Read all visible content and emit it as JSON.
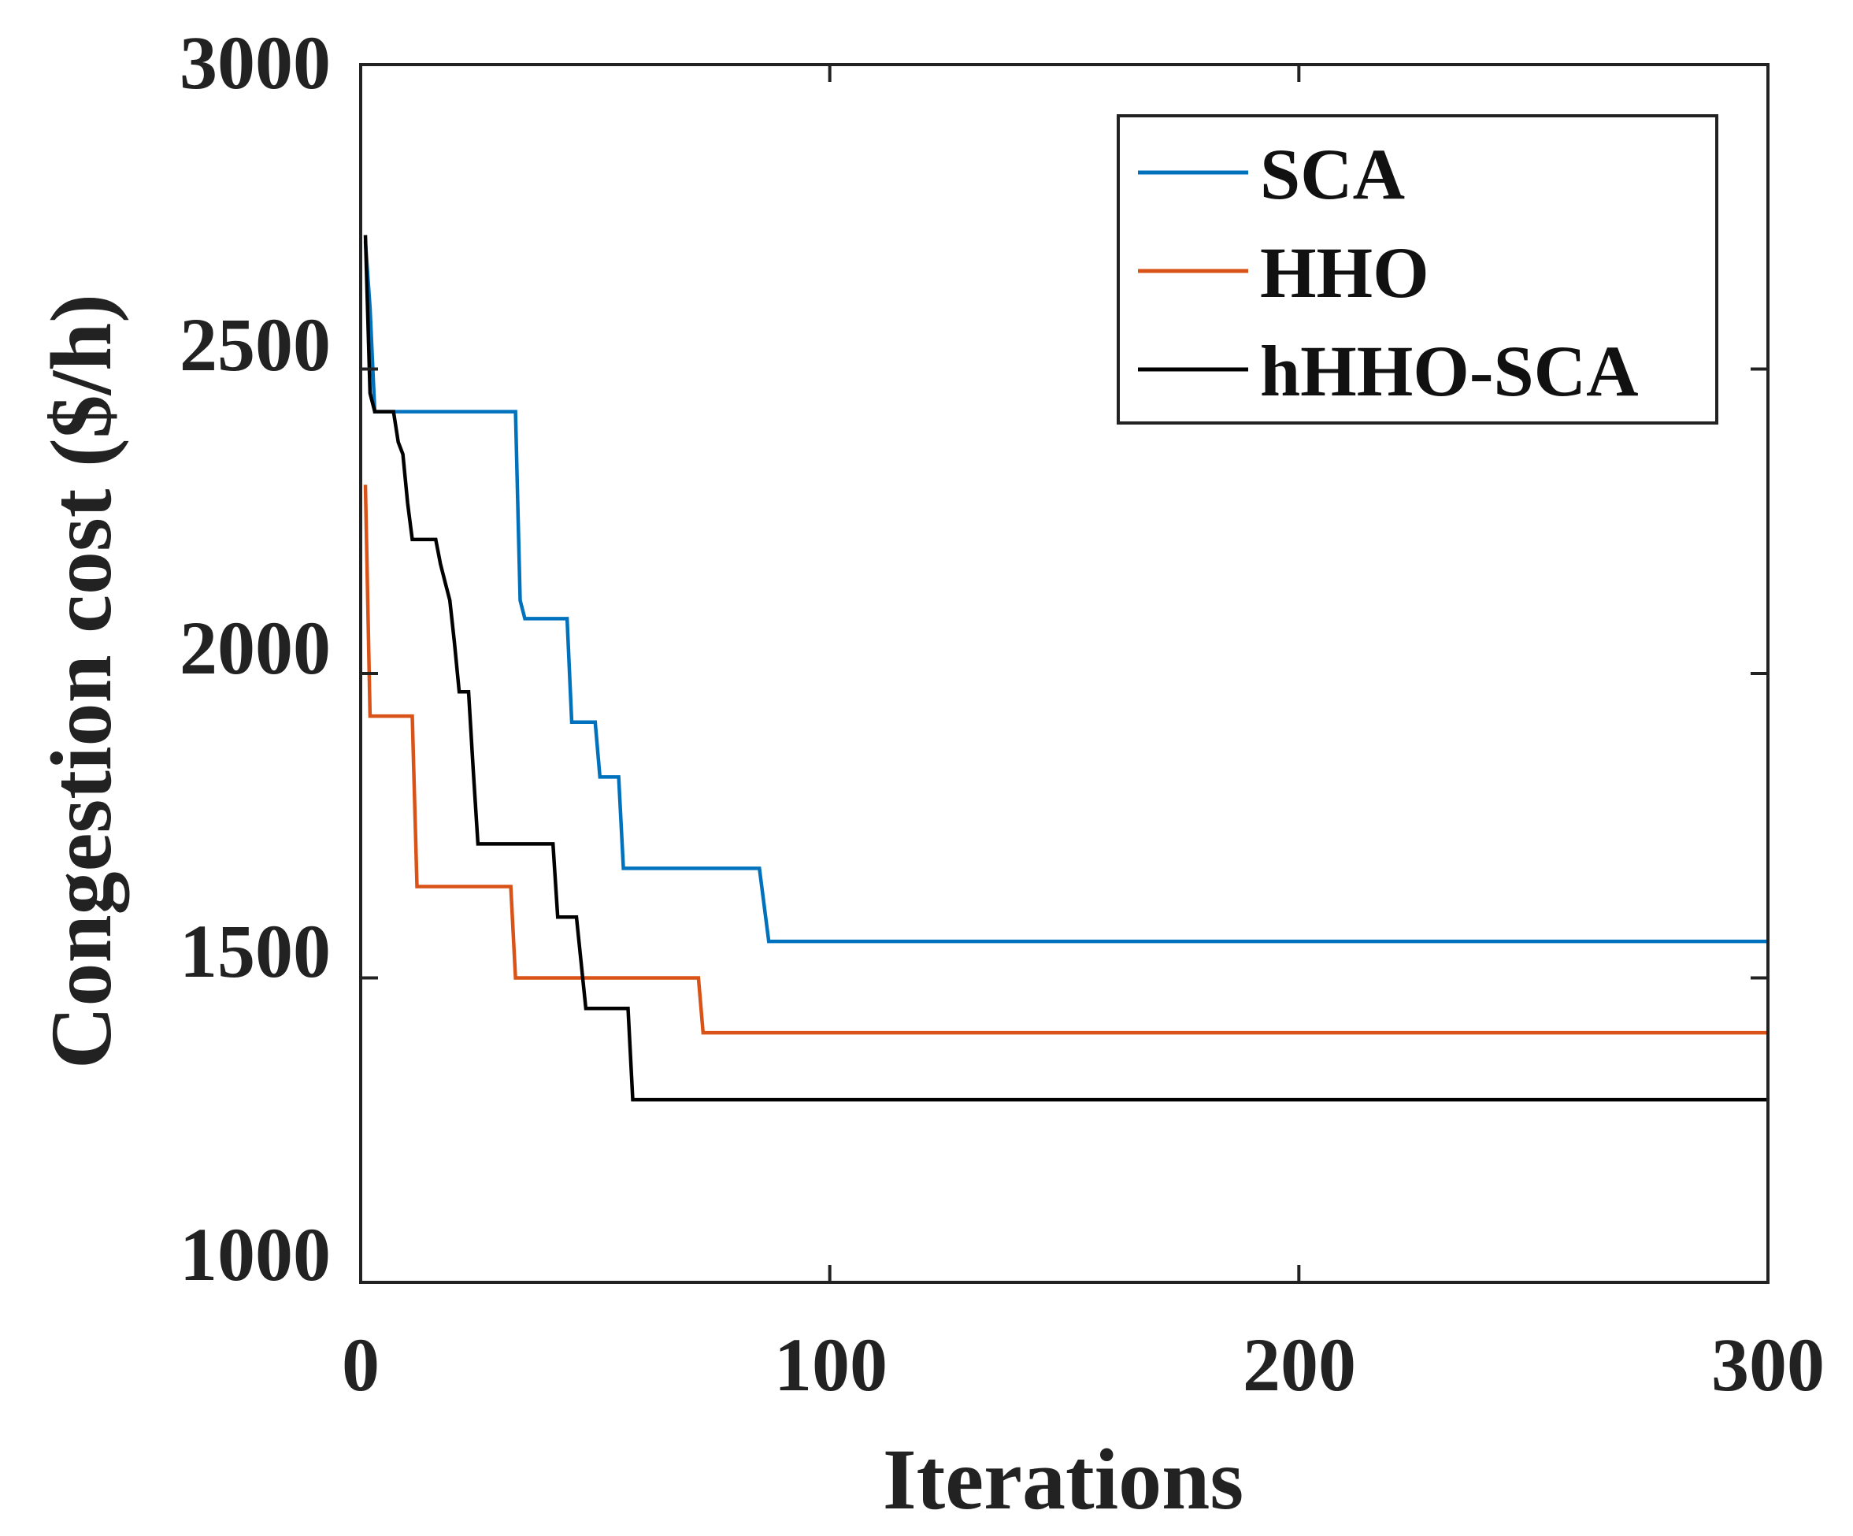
{
  "chart_data": {
    "type": "line",
    "title": "",
    "xlabel": "Iterations",
    "ylabel": "Congestion cost ($/h)",
    "xlim": [
      0,
      300
    ],
    "ylim": [
      1000,
      3000
    ],
    "x_ticks": [
      0,
      100,
      200,
      300
    ],
    "y_ticks": [
      1000,
      1500,
      2000,
      2500,
      3000
    ],
    "grid": false,
    "legend_position": "top-right",
    "step": true,
    "series": [
      {
        "name": "SCA",
        "color": "#0072BD",
        "points": [
          [
            1,
            2710
          ],
          [
            2,
            2600
          ],
          [
            3,
            2430
          ],
          [
            33,
            2430
          ],
          [
            34,
            2120
          ],
          [
            35,
            2090
          ],
          [
            44,
            2090
          ],
          [
            45,
            1920
          ],
          [
            50,
            1920
          ],
          [
            51,
            1830
          ],
          [
            55,
            1830
          ],
          [
            56,
            1680
          ],
          [
            85,
            1680
          ],
          [
            87,
            1560
          ],
          [
            300,
            1560
          ]
        ]
      },
      {
        "name": "HHO",
        "color": "#D95319",
        "points": [
          [
            1,
            2310
          ],
          [
            2,
            1930
          ],
          [
            11,
            1930
          ],
          [
            12,
            1650
          ],
          [
            32,
            1650
          ],
          [
            33,
            1500
          ],
          [
            72,
            1500
          ],
          [
            73,
            1410
          ],
          [
            300,
            1410
          ]
        ]
      },
      {
        "name": "hHHO-SCA",
        "color": "#000000",
        "points": [
          [
            1,
            2720
          ],
          [
            2,
            2460
          ],
          [
            3,
            2430
          ],
          [
            7,
            2430
          ],
          [
            8,
            2380
          ],
          [
            9,
            2360
          ],
          [
            10,
            2280
          ],
          [
            11,
            2220
          ],
          [
            16,
            2220
          ],
          [
            17,
            2180
          ],
          [
            18,
            2150
          ],
          [
            19,
            2120
          ],
          [
            20,
            2050
          ],
          [
            21,
            1970
          ],
          [
            23,
            1970
          ],
          [
            24,
            1840
          ],
          [
            25,
            1720
          ],
          [
            41,
            1720
          ],
          [
            42,
            1600
          ],
          [
            46,
            1600
          ],
          [
            48,
            1450
          ],
          [
            57,
            1450
          ],
          [
            58,
            1300
          ],
          [
            300,
            1300
          ]
        ]
      }
    ]
  }
}
